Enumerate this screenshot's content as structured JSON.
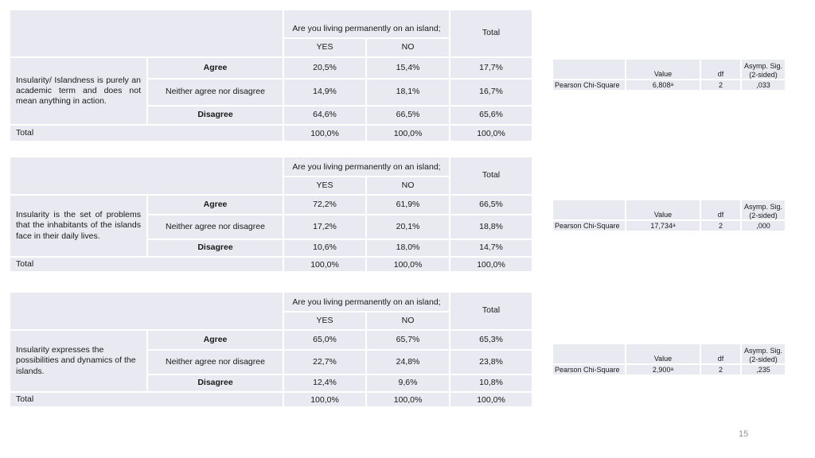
{
  "page": {
    "number": "15"
  },
  "colors": {
    "cell_bg": "#e9e9f1",
    "gridline": "#ffffff",
    "text": "#191919",
    "page_number": "#8f9194"
  },
  "shared": {
    "island_question": "Are you living permanently on an island;",
    "col_yes": "YES",
    "col_no": "NO",
    "col_total": "Total",
    "row_agree": "Agree",
    "row_neither": "Neither agree nor disagree",
    "row_disagree": "Disagree",
    "row_total": "Total",
    "chi": {
      "header_value": "Value",
      "header_df": "df",
      "header_sig_line1": "Asymp. Sig.",
      "header_sig_line2": "(2-sided)",
      "row_label": "Pearson Chi-Square"
    }
  },
  "tables": [
    {
      "statement": "Insularity/ Islandness is purely an academic term and does not mean anything in action.",
      "agree": {
        "yes": "20,5%",
        "no": "15,4%",
        "total": "17,7%"
      },
      "neither": {
        "yes": "14,9%",
        "no": "18,1%",
        "total": "16,7%"
      },
      "disagree": {
        "yes": "64,6%",
        "no": "66,5%",
        "total": "65,6%"
      },
      "total": {
        "yes": "100,0%",
        "no": "100,0%",
        "total": "100,0%"
      },
      "chi": {
        "value": "6,808",
        "value_sup": "a",
        "df": "2",
        "sig": ",033"
      }
    },
    {
      "statement": "Insularity is the set of problems that the inhabitants of the islands face in their daily lives.",
      "agree": {
        "yes": "72,2%",
        "no": "61,9%",
        "total": "66,5%"
      },
      "neither": {
        "yes": "17,2%",
        "no": "20,1%",
        "total": "18,8%"
      },
      "disagree": {
        "yes": "10,6%",
        "no": "18,0%",
        "total": "14,7%"
      },
      "total": {
        "yes": "100,0%",
        "no": "100,0%",
        "total": "100,0%"
      },
      "chi": {
        "value": "17,734",
        "value_sup": "a",
        "df": "2",
        "sig": ",000"
      }
    },
    {
      "statement": "Insularity expresses the possibilities and dynamics of the islands.",
      "agree": {
        "yes": "65,0%",
        "no": "65,7%",
        "total": "65,3%"
      },
      "neither": {
        "yes": "22,7%",
        "no": "24,8%",
        "total": "23,8%"
      },
      "disagree": {
        "yes": "12,4%",
        "no": "9,6%",
        "total": "10,8%"
      },
      "total": {
        "yes": "100,0%",
        "no": "100,0%",
        "total": "100,0%"
      },
      "chi": {
        "value": "2,900",
        "value_sup": "a",
        "df": "2",
        "sig": ",235"
      }
    }
  ]
}
